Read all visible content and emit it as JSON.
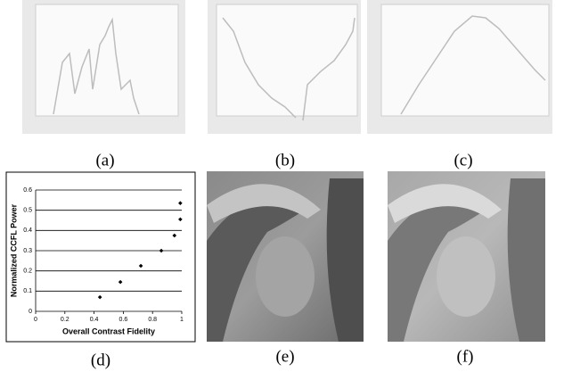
{
  "captions": [
    "(a)",
    "(b)",
    "(c)",
    "(d)",
    "(e)",
    "(f)"
  ],
  "chart_data": {
    "type": "scatter",
    "xlabel": "Overall Contrast Fidelity",
    "ylabel": "Normalized CCFL Power",
    "x": [
      0.44,
      0.58,
      0.72,
      0.86,
      0.95,
      0.99,
      0.99
    ],
    "values": [
      0.07,
      0.145,
      0.225,
      0.3,
      0.375,
      0.455,
      0.535
    ],
    "color": "#000000",
    "xlim": [
      0,
      1
    ],
    "xticks": [
      0,
      0.2,
      0.4,
      0.6,
      0.8,
      1
    ],
    "ylim": [
      0,
      0.6
    ],
    "yticks": [
      0,
      0.1,
      0.2,
      0.3,
      0.4,
      0.5,
      0.6
    ],
    "grid": true
  }
}
